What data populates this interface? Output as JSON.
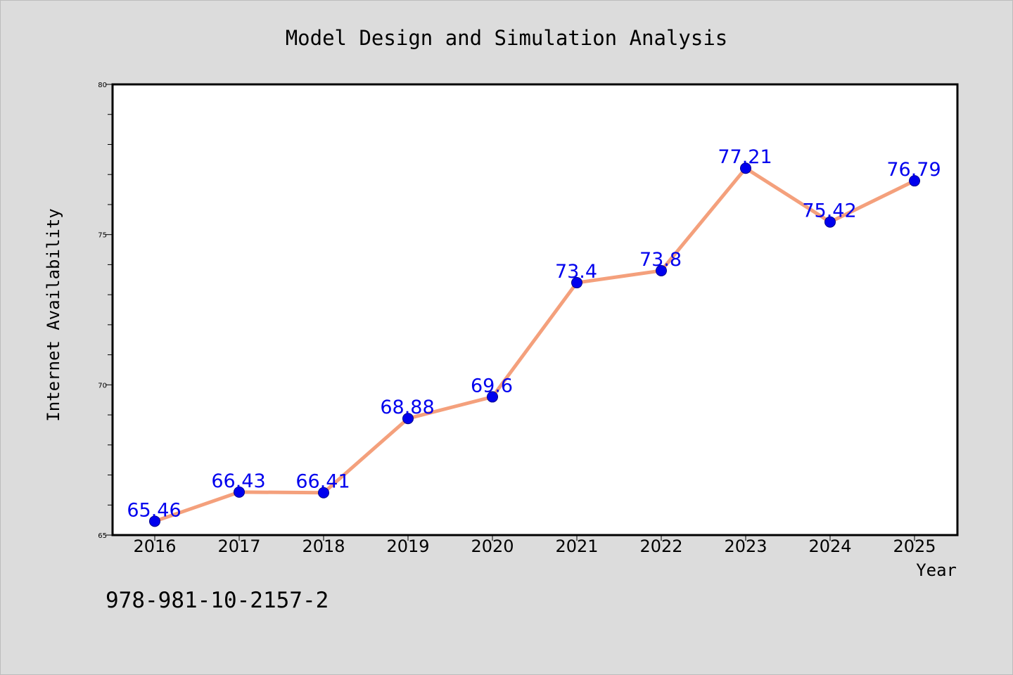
{
  "chart_data": {
    "type": "line",
    "title": "Model Design and Simulation Analysis",
    "xlabel": "Year",
    "ylabel": "Internet Availability",
    "categories": [
      "2016",
      "2017",
      "2018",
      "2019",
      "2020",
      "2021",
      "2022",
      "2023",
      "2024",
      "2025"
    ],
    "series": [
      {
        "values": [
          65.46,
          66.43,
          66.41,
          68.88,
          69.6,
          73.4,
          73.8,
          77.21,
          75.42,
          76.79
        ],
        "data_labels": [
          "65.46",
          "66.43",
          "66.41",
          "68.88",
          "69.6",
          "73.4",
          "73.8",
          "77.21",
          "75.42",
          "76.79"
        ]
      }
    ],
    "ylim": [
      65,
      80
    ],
    "yticks_major": [
      65,
      70,
      75,
      80
    ],
    "yticks_major_labels": [
      "65",
      "70",
      "75",
      "80"
    ],
    "yticks_minor_step": 1,
    "grid": false,
    "legend": "none",
    "colors": {
      "line": "#f4a07c",
      "marker": "#0000ee",
      "marker_edge": "#00008b",
      "data_label": "#0000ee",
      "plot_background": "#ffffff",
      "figure_background": "#dcdcdc"
    }
  },
  "footer": {
    "isbn": "978-981-10-2157-2"
  }
}
